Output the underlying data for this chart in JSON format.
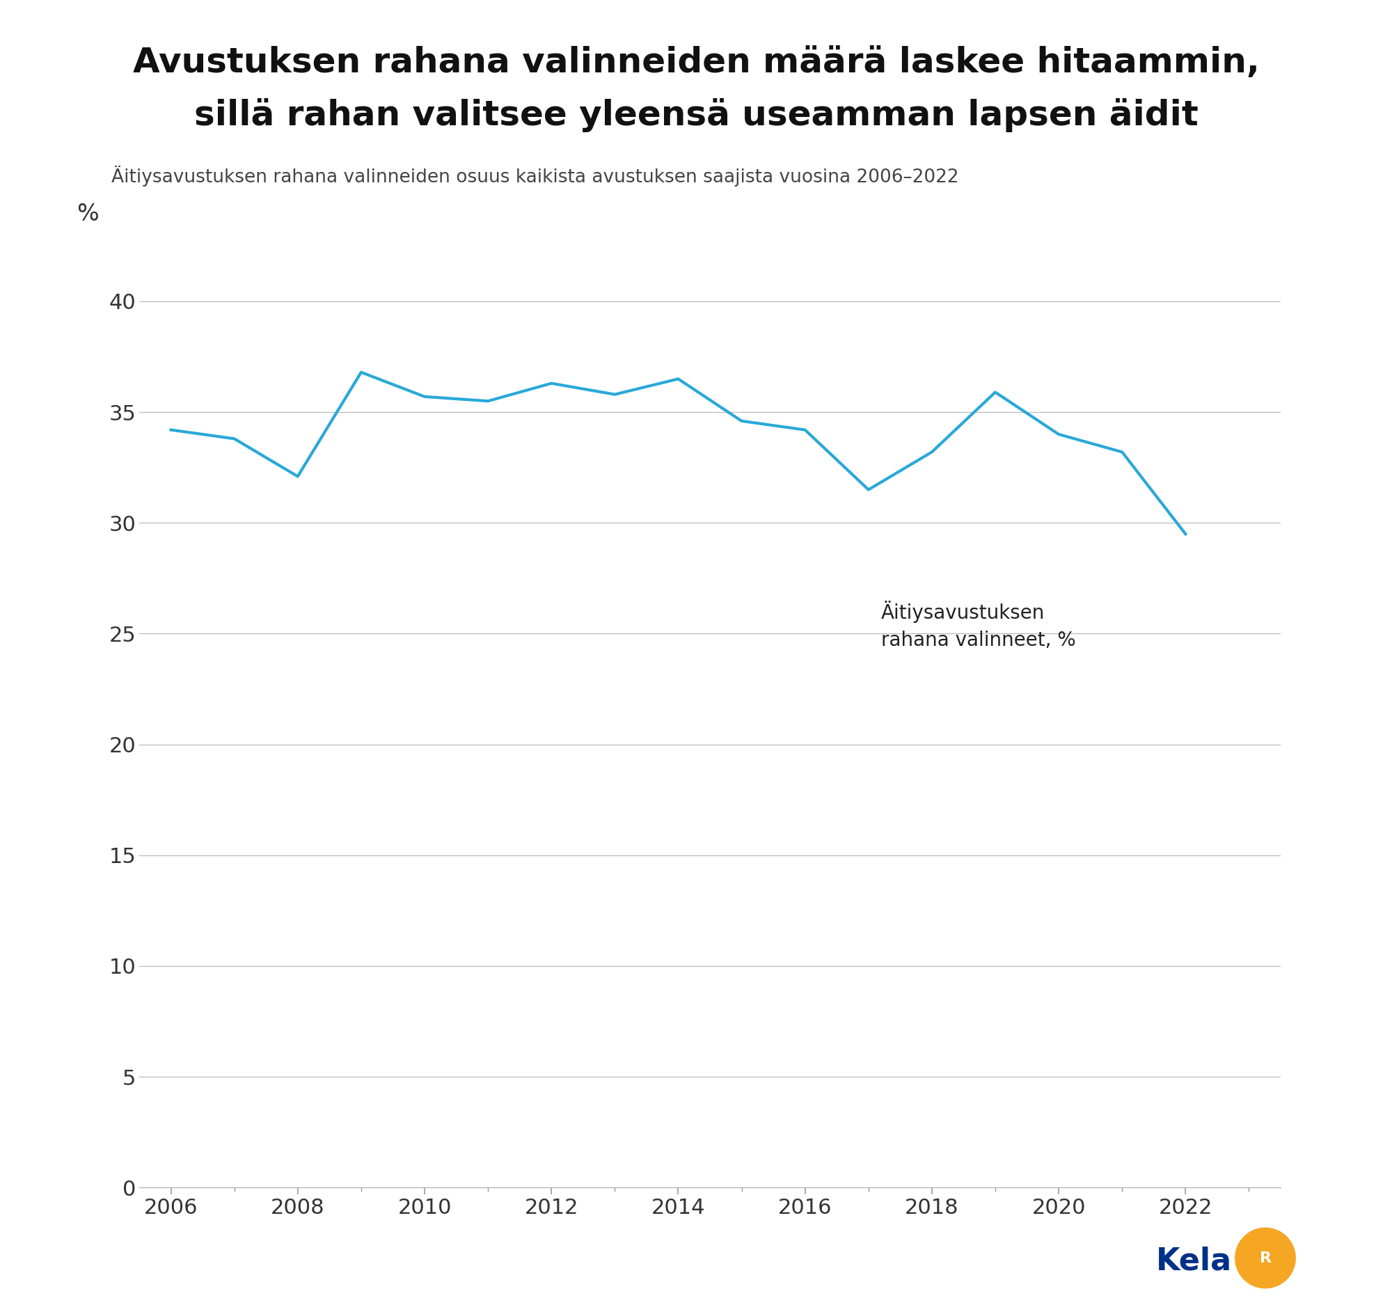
{
  "title_line1": "Avustuksen rahana valinneiden määrä laskee hitaammin,",
  "title_line2": "sillä rahan valitsee yleensä useamman lapsen äidit",
  "subtitle": "Äitiysavustuksen rahana valinneiden osuus kaikista avustuksen saajista vuosina 2006–2022",
  "years": [
    2006,
    2007,
    2008,
    2009,
    2010,
    2011,
    2012,
    2013,
    2014,
    2015,
    2016,
    2017,
    2018,
    2019,
    2020,
    2021,
    2022
  ],
  "values": [
    34.2,
    33.8,
    32.1,
    36.8,
    35.7,
    35.5,
    36.3,
    35.8,
    36.5,
    34.6,
    34.2,
    31.5,
    33.2,
    35.9,
    34.0,
    33.2,
    29.5
  ],
  "line_color": "#29A8D8",
  "line_width": 3.0,
  "background_color": "#ffffff",
  "ylabel": "%",
  "yticks": [
    0,
    5,
    10,
    15,
    20,
    25,
    30,
    35,
    40
  ],
  "ylim": [
    0,
    43
  ],
  "xlim": [
    2005.5,
    2023.5
  ],
  "xticks": [
    2006,
    2008,
    2010,
    2012,
    2014,
    2016,
    2018,
    2020,
    2022
  ],
  "legend_text": "Äitiysavustuksen\nrahana valinneet, %",
  "grid_color": "#bbbbbb",
  "title_fontsize": 36,
  "subtitle_fontsize": 19,
  "axis_fontsize": 22,
  "legend_fontsize": 20,
  "kela_fontsize": 32
}
